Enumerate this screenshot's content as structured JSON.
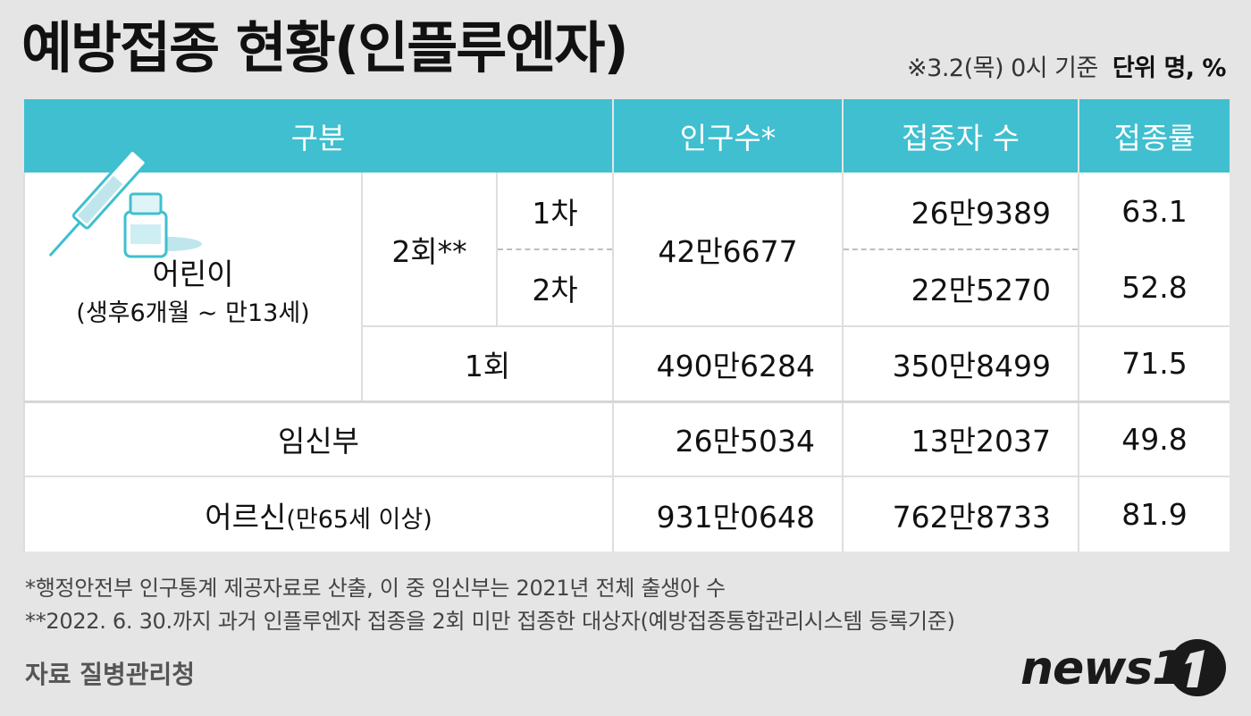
{
  "title": "예방접종 현황(인플루엔자)",
  "basis": "※3.2(목) 0시 기준",
  "unit": "단위 명, %",
  "table": {
    "headers": [
      "구분",
      "인구수*",
      "접종자 수",
      "접종률"
    ],
    "children": {
      "label": "어린이",
      "sublabel": "(생후6개월 ~ 만13세)",
      "two_dose_label": "2회**",
      "dose1_label": "1차",
      "dose2_label": "2차",
      "two_dose_population": "42만6677",
      "dose1_vaccinated": "26만9389",
      "dose1_rate": "63.1",
      "dose2_vaccinated": "22만5270",
      "dose2_rate": "52.8",
      "one_dose_label": "1회",
      "one_dose_population": "490만6284",
      "one_dose_vaccinated": "350만8499",
      "one_dose_rate": "71.5"
    },
    "pregnant": {
      "label": "임신부",
      "population": "26만5034",
      "vaccinated": "13만2037",
      "rate": "49.8"
    },
    "elderly": {
      "label": "어르신",
      "sublabel": "(만65세 이상)",
      "population": "931만0648",
      "vaccinated": "762만8733",
      "rate": "81.9"
    }
  },
  "footnotes": [
    "*행정안전부 인구통계 제공자료로 산출, 이 중 임신부는 2021년 전체 출생아 수",
    "**2022. 6. 30.까지 과거 인플루엔자 접종을 2회 미만 접종한 대상자(예방접종통합관리시스템 등록기준)"
  ],
  "source": "자료 질병관리청",
  "logo": "news1",
  "chart_data": {
    "type": "table",
    "title": "예방접종 현황(인플루엔자)",
    "columns": [
      "구분",
      "인구수*",
      "접종자 수",
      "접종률"
    ],
    "rows": [
      [
        "어린이 2회** 1차",
        "42만6677",
        "26만9389",
        63.1
      ],
      [
        "어린이 2회** 2차",
        "42만6677",
        "22만5270",
        52.8
      ],
      [
        "어린이 1회",
        "490만6284",
        "350만8499",
        71.5
      ],
      [
        "임신부",
        "26만5034",
        "13만2037",
        49.8
      ],
      [
        "어르신(만65세 이상)",
        "931만0648",
        "762만8733",
        81.9
      ]
    ]
  },
  "colors": {
    "header_bg": "#3fbfcf",
    "page_bg": "#e5e5e5",
    "logo_accent": "#2b9fd6"
  },
  "icons": [
    "syringe-icon",
    "vial-icon"
  ]
}
